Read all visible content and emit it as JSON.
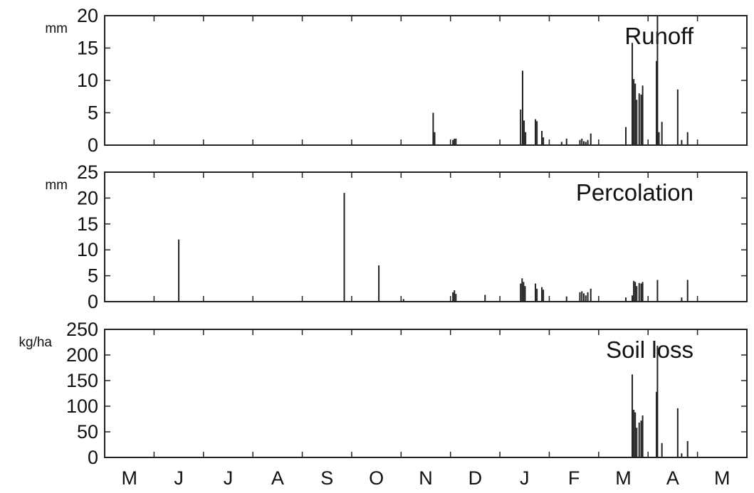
{
  "chart_data": {
    "type": "bar",
    "x_categories": [
      "M",
      "J",
      "J",
      "A",
      "S",
      "O",
      "N",
      "D",
      "J",
      "F",
      "M",
      "A",
      "M"
    ],
    "grid": false,
    "panels": [
      {
        "title": "Runoff",
        "unit": "mm",
        "ylim": [
          0,
          20
        ],
        "yticks": [
          0,
          5,
          10,
          15,
          20
        ],
        "bars": [
          {
            "x": 6.65,
            "y": 5.0
          },
          {
            "x": 6.68,
            "y": 2.0
          },
          {
            "x": 7.05,
            "y": 0.8
          },
          {
            "x": 7.08,
            "y": 1.0
          },
          {
            "x": 7.11,
            "y": 1.0
          },
          {
            "x": 8.42,
            "y": 5.5
          },
          {
            "x": 8.46,
            "y": 11.5
          },
          {
            "x": 8.49,
            "y": 3.8
          },
          {
            "x": 8.52,
            "y": 2.0
          },
          {
            "x": 8.72,
            "y": 4.0
          },
          {
            "x": 8.75,
            "y": 3.7
          },
          {
            "x": 8.85,
            "y": 2.2
          },
          {
            "x": 8.88,
            "y": 1.2
          },
          {
            "x": 9.25,
            "y": 0.5
          },
          {
            "x": 9.35,
            "y": 1.0
          },
          {
            "x": 9.62,
            "y": 0.8
          },
          {
            "x": 9.66,
            "y": 1.0
          },
          {
            "x": 9.7,
            "y": 0.6
          },
          {
            "x": 9.74,
            "y": 0.5
          },
          {
            "x": 9.78,
            "y": 0.8
          },
          {
            "x": 9.84,
            "y": 1.8
          },
          {
            "x": 10.55,
            "y": 2.8
          },
          {
            "x": 10.68,
            "y": 15.8
          },
          {
            "x": 10.71,
            "y": 10.2
          },
          {
            "x": 10.74,
            "y": 9.5
          },
          {
            "x": 10.77,
            "y": 7.0
          },
          {
            "x": 10.82,
            "y": 8.0
          },
          {
            "x": 10.86,
            "y": 7.8
          },
          {
            "x": 10.89,
            "y": 9.2
          },
          {
            "x": 11.17,
            "y": 13.0
          },
          {
            "x": 11.19,
            "y": 20.0
          },
          {
            "x": 11.22,
            "y": 2.0
          },
          {
            "x": 11.28,
            "y": 3.6
          },
          {
            "x": 11.6,
            "y": 8.6
          },
          {
            "x": 11.68,
            "y": 0.8
          },
          {
            "x": 11.8,
            "y": 2.0
          }
        ]
      },
      {
        "title": "Percolation",
        "unit": "mm",
        "ylim": [
          0,
          25
        ],
        "yticks": [
          0,
          5,
          10,
          15,
          20,
          25
        ],
        "bars": [
          {
            "x": 1.5,
            "y": 12.0
          },
          {
            "x": 4.85,
            "y": 21.0
          },
          {
            "x": 5.55,
            "y": 7.0
          },
          {
            "x": 6.05,
            "y": 0.5
          },
          {
            "x": 7.05,
            "y": 1.8
          },
          {
            "x": 7.08,
            "y": 2.2
          },
          {
            "x": 7.11,
            "y": 1.5
          },
          {
            "x": 7.7,
            "y": 1.3
          },
          {
            "x": 8.42,
            "y": 3.5
          },
          {
            "x": 8.45,
            "y": 4.5
          },
          {
            "x": 8.48,
            "y": 3.8
          },
          {
            "x": 8.51,
            "y": 3.0
          },
          {
            "x": 8.72,
            "y": 3.5
          },
          {
            "x": 8.75,
            "y": 2.5
          },
          {
            "x": 8.85,
            "y": 2.8
          },
          {
            "x": 8.88,
            "y": 2.3
          },
          {
            "x": 9.35,
            "y": 1.0
          },
          {
            "x": 9.62,
            "y": 1.8
          },
          {
            "x": 9.66,
            "y": 2.0
          },
          {
            "x": 9.7,
            "y": 1.6
          },
          {
            "x": 9.74,
            "y": 1.2
          },
          {
            "x": 9.78,
            "y": 1.8
          },
          {
            "x": 9.84,
            "y": 2.5
          },
          {
            "x": 10.55,
            "y": 0.8
          },
          {
            "x": 10.68,
            "y": 1.2
          },
          {
            "x": 10.71,
            "y": 4.0
          },
          {
            "x": 10.74,
            "y": 3.8
          },
          {
            "x": 10.77,
            "y": 3.0
          },
          {
            "x": 10.82,
            "y": 3.6
          },
          {
            "x": 10.86,
            "y": 3.5
          },
          {
            "x": 10.89,
            "y": 3.8
          },
          {
            "x": 11.19,
            "y": 4.2
          },
          {
            "x": 11.68,
            "y": 0.8
          },
          {
            "x": 11.8,
            "y": 4.2
          }
        ]
      },
      {
        "title": "Soil loss",
        "unit": "kg/ha",
        "ylim": [
          0,
          250
        ],
        "yticks": [
          0,
          50,
          100,
          150,
          200,
          250
        ],
        "bars": [
          {
            "x": 10.68,
            "y": 162
          },
          {
            "x": 10.71,
            "y": 93
          },
          {
            "x": 10.74,
            "y": 88
          },
          {
            "x": 10.77,
            "y": 58
          },
          {
            "x": 10.82,
            "y": 68
          },
          {
            "x": 10.86,
            "y": 72
          },
          {
            "x": 10.89,
            "y": 82
          },
          {
            "x": 11.17,
            "y": 128
          },
          {
            "x": 11.19,
            "y": 218
          },
          {
            "x": 11.28,
            "y": 28
          },
          {
            "x": 11.6,
            "y": 96
          },
          {
            "x": 11.68,
            "y": 8
          },
          {
            "x": 11.8,
            "y": 32
          }
        ]
      }
    ]
  }
}
